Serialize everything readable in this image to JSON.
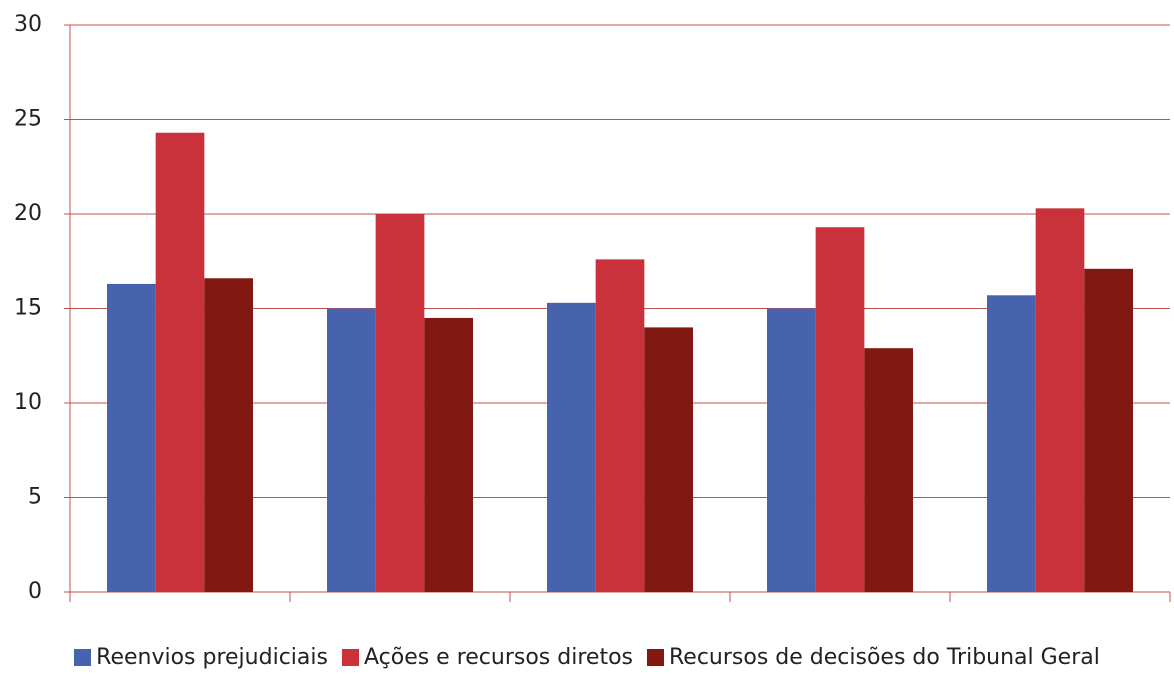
{
  "chart_data": {
    "type": "bar",
    "categories": [
      null,
      null,
      null,
      null,
      null
    ],
    "series": [
      {
        "name": "Reenvios prejudiciais",
        "color": "#4763ad",
        "values": [
          16.3,
          15.0,
          15.3,
          15.0,
          15.7
        ]
      },
      {
        "name": "Ações e recursos diretos",
        "color": "#c9323a",
        "values": [
          24.3,
          20.0,
          17.6,
          19.3,
          20.3
        ]
      },
      {
        "name": "Recursos de decisões do Tribunal Geral",
        "color": "#821812",
        "values": [
          16.6,
          14.5,
          14.0,
          12.9,
          17.1
        ]
      }
    ],
    "ylim": [
      0,
      30
    ],
    "yticks": [
      0,
      5,
      10,
      15,
      20,
      25,
      30
    ],
    "grid": true,
    "grid_color": "#c0504d",
    "legend": "bottom"
  }
}
